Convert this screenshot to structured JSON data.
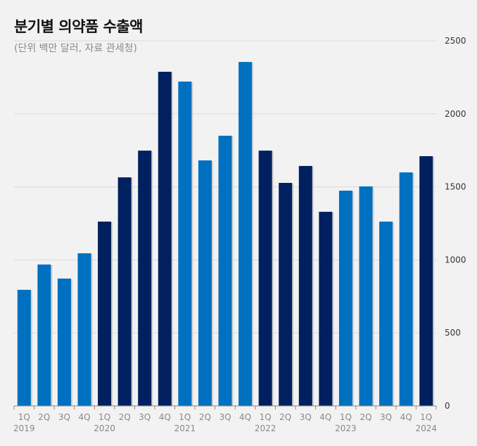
{
  "chart_data": {
    "type": "bar",
    "title": "분기별 의약품 수출액",
    "subtitle": "(단위 백만 달러, 자료 관세청)",
    "categories": [
      "1Q",
      "2Q",
      "3Q",
      "4Q",
      "1Q",
      "2Q",
      "3Q",
      "4Q",
      "1Q",
      "2Q",
      "3Q",
      "4Q",
      "1Q",
      "2Q",
      "3Q",
      "4Q",
      "1Q",
      "2Q",
      "3Q",
      "4Q",
      "1Q"
    ],
    "years": [
      "2019",
      "",
      "",
      "",
      "2020",
      "",
      "",
      "",
      "2021",
      "",
      "",
      "",
      "2022",
      "",
      "",
      "",
      "2023",
      "",
      "",
      "",
      "2024"
    ],
    "values": [
      795,
      968,
      872,
      1045,
      1262,
      1565,
      1748,
      2288,
      2221,
      1681,
      1850,
      2355,
      1748,
      1527,
      1643,
      1329,
      1474,
      1503,
      1262,
      1599,
      1710
    ],
    "bar_colors": [
      "#0070c0",
      "#0070c0",
      "#0070c0",
      "#0070c0",
      "#002060",
      "#002060",
      "#002060",
      "#002060",
      "#0070c0",
      "#0070c0",
      "#0070c0",
      "#0070c0",
      "#002060",
      "#002060",
      "#002060",
      "#002060",
      "#0070c0",
      "#0070c0",
      "#0070c0",
      "#0070c0",
      "#002060"
    ],
    "ylim": [
      0,
      2500
    ],
    "yticks": [
      0,
      500,
      1000,
      1500,
      2000,
      2500
    ],
    "ylabel_position": "right",
    "grid": true,
    "xlabel": "",
    "ylabel": ""
  }
}
